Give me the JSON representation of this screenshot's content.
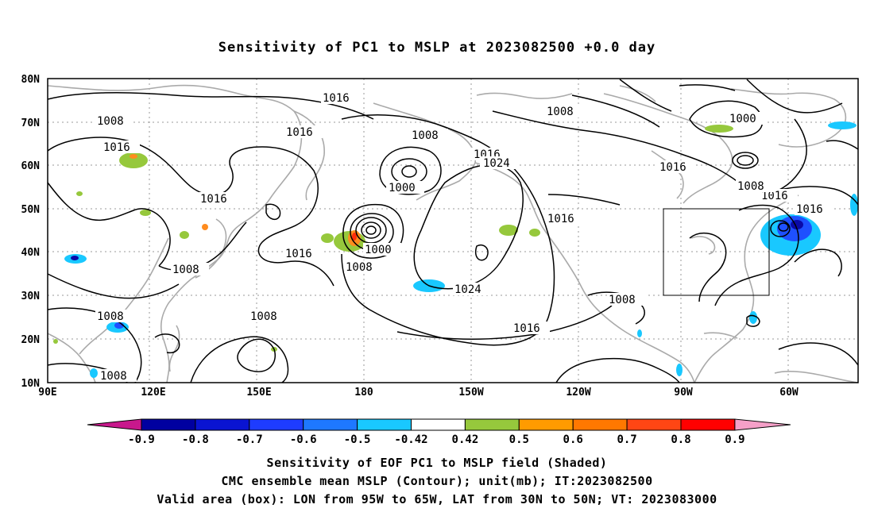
{
  "title": "Sensitivity of PC1 to MSLP at 2023082500 +0.0 day",
  "map": {
    "lat_labels": [
      "80N",
      "70N",
      "60N",
      "50N",
      "40N",
      "30N",
      "20N",
      "10N"
    ],
    "lon_labels": [
      "90E",
      "120E",
      "150E",
      "180",
      "150W",
      "120W",
      "90W",
      "60W"
    ],
    "contour_labels": [
      {
        "text": "1016"
      },
      {
        "text": "1008"
      },
      {
        "text": "1016"
      },
      {
        "text": "1016"
      },
      {
        "text": "1008"
      },
      {
        "text": "1016"
      },
      {
        "text": "1024"
      },
      {
        "text": "1000"
      },
      {
        "text": "1008"
      },
      {
        "text": "1016"
      },
      {
        "text": "1000"
      },
      {
        "text": "1008"
      },
      {
        "text": "1008"
      },
      {
        "text": "1016"
      },
      {
        "text": "1008"
      },
      {
        "text": "1016"
      },
      {
        "text": "1016"
      },
      {
        "text": "1016"
      },
      {
        "text": "1000"
      },
      {
        "text": "1024"
      },
      {
        "text": "1008"
      },
      {
        "text": "1008"
      },
      {
        "text": "1008"
      },
      {
        "text": "1008"
      },
      {
        "text": "1016"
      },
      {
        "text": "1016"
      }
    ],
    "valid_box": {
      "lon_from": "95W",
      "lon_to": "65W",
      "lat_from": "30N",
      "lat_to": "50N"
    },
    "shading_colors": {
      "neg_strong": "#0a0aa8",
      "neg_mid": "#1e50ff",
      "neg_weak": "#19c8ff",
      "pos_weak": "#96c83c",
      "pos_mid": "#ff8c1e",
      "pos_strong": "#ff2d0a"
    },
    "continent_color": "#aaaaaa"
  },
  "colorbar": {
    "ticks": [
      "-0.9",
      "-0.8",
      "-0.7",
      "-0.6",
      "-0.5",
      "-0.42",
      "0.42",
      "0.5",
      "0.6",
      "0.7",
      "0.8",
      "0.9"
    ],
    "colors": [
      "#c8188c",
      "#0000a0",
      "#0a14d2",
      "#1e3cff",
      "#1e78ff",
      "#19c8ff",
      "#ffffff",
      "#96c83c",
      "#ff9b00",
      "#ff7800",
      "#ff4614",
      "#ff0000",
      "#f5a0c8"
    ]
  },
  "captions": {
    "line1": "Sensitivity of EOF PC1 to MSLP field (Shaded)",
    "line2": "CMC ensemble mean MSLP (Contour); unit(mb); IT:2023082500",
    "line3": "Valid area (box): LON from 95W to 65W, LAT from 30N to 50N; VT: 2023083000"
  }
}
